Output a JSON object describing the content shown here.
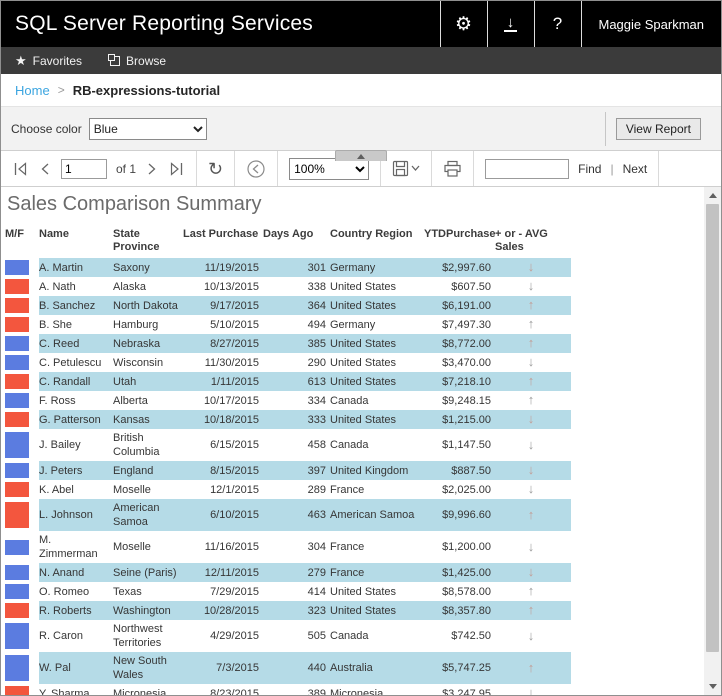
{
  "header": {
    "title": "SQL Server Reporting Services",
    "user": "Maggie Sparkman",
    "help_glyph": "?",
    "gear_glyph": "⚙",
    "download_glyph": "↓"
  },
  "tabs": {
    "favorites": "Favorites",
    "browse": "Browse",
    "star_glyph": "★"
  },
  "breadcrumb": {
    "home": "Home",
    "separator": ">",
    "current": "RB-expressions-tutorial"
  },
  "parameters": {
    "label": "Choose color",
    "selected_value": "Blue",
    "view_report": "View Report"
  },
  "toolbar": {
    "page_value": "1",
    "of_label": "of 1",
    "zoom_value": "100%",
    "refresh_glyph": "↻",
    "find_label": "Find",
    "pipe": "|",
    "next_label": "Next",
    "find_value": ""
  },
  "report": {
    "title": "Sales Comparison Summary",
    "columns": [
      "M/F",
      "Name",
      "State Province",
      "Last Purchase",
      "Days Ago",
      "Country Region",
      "YTDPurchase",
      "+ or - AVG Sales"
    ],
    "colors": {
      "male_blue": "#5b7ce0",
      "female_red": "#f3563e",
      "alt_row": "#b5dbe7"
    },
    "icons": {
      "up_arrow": "↑",
      "down_arrow": "↓"
    },
    "rows": [
      {
        "mf": "blue",
        "name": "A. Martin",
        "state": "Saxony",
        "last_purchase": "11/19/2015",
        "days_ago": "301",
        "country": "Germany",
        "ytd": "$2,997.60",
        "trend": "down"
      },
      {
        "mf": "red",
        "name": "A. Nath",
        "state": "Alaska",
        "last_purchase": "10/13/2015",
        "days_ago": "338",
        "country": "United States",
        "ytd": "$607.50",
        "trend": "down"
      },
      {
        "mf": "red",
        "name": "B. Sanchez",
        "state": "North Dakota",
        "last_purchase": "9/17/2015",
        "days_ago": "364",
        "country": "United States",
        "ytd": "$6,191.00",
        "trend": "up"
      },
      {
        "mf": "red",
        "name": "B. She",
        "state": "Hamburg",
        "last_purchase": "5/10/2015",
        "days_ago": "494",
        "country": "Germany",
        "ytd": "$7,497.30",
        "trend": "up"
      },
      {
        "mf": "blue",
        "name": "C. Reed",
        "state": "Nebraska",
        "last_purchase": "8/27/2015",
        "days_ago": "385",
        "country": "United States",
        "ytd": "$8,772.00",
        "trend": "up"
      },
      {
        "mf": "blue",
        "name": "C. Petulescu",
        "state": "Wisconsin",
        "last_purchase": "11/30/2015",
        "days_ago": "290",
        "country": "United States",
        "ytd": "$3,470.00",
        "trend": "down"
      },
      {
        "mf": "red",
        "name": "C. Randall",
        "state": "Utah",
        "last_purchase": "1/11/2015",
        "days_ago": "613",
        "country": "United States",
        "ytd": "$7,218.10",
        "trend": "up"
      },
      {
        "mf": "blue",
        "name": "F. Ross",
        "state": "Alberta",
        "last_purchase": "10/17/2015",
        "days_ago": "334",
        "country": "Canada",
        "ytd": "$9,248.15",
        "trend": "up"
      },
      {
        "mf": "red",
        "name": "G. Patterson",
        "state": "Kansas",
        "last_purchase": "10/18/2015",
        "days_ago": "333",
        "country": "United States",
        "ytd": "$1,215.00",
        "trend": "down"
      },
      {
        "mf": "blue",
        "name": "J. Bailey",
        "state": "British Columbia",
        "last_purchase": "6/15/2015",
        "days_ago": "458",
        "country": "Canada",
        "ytd": "$1,147.50",
        "trend": "down",
        "tall": true
      },
      {
        "mf": "blue",
        "name": "J. Peters",
        "state": "England",
        "last_purchase": "8/15/2015",
        "days_ago": "397",
        "country": "United Kingdom",
        "ytd": "$887.50",
        "trend": "down"
      },
      {
        "mf": "red",
        "name": "K. Abel",
        "state": "Moselle",
        "last_purchase": "12/1/2015",
        "days_ago": "289",
        "country": "France",
        "ytd": "$2,025.00",
        "trend": "down"
      },
      {
        "mf": "red",
        "name": "L. Johnson",
        "state": "American Samoa",
        "last_purchase": "6/10/2015",
        "days_ago": "463",
        "country": "American Samoa",
        "ytd": "$9,996.60",
        "trend": "up",
        "tall": true
      },
      {
        "mf": "blue",
        "name": "M. Zimmerman",
        "state": "Moselle",
        "last_purchase": "11/16/2015",
        "days_ago": "304",
        "country": "France",
        "ytd": "$1,200.00",
        "trend": "down"
      },
      {
        "mf": "blue",
        "name": "N. Anand",
        "state": "Seine (Paris)",
        "last_purchase": "12/11/2015",
        "days_ago": "279",
        "country": "France",
        "ytd": "$1,425.00",
        "trend": "down"
      },
      {
        "mf": "blue",
        "name": "O. Romeo",
        "state": "Texas",
        "last_purchase": "7/29/2015",
        "days_ago": "414",
        "country": "United States",
        "ytd": "$8,578.00",
        "trend": "up"
      },
      {
        "mf": "red",
        "name": "R. Roberts",
        "state": "Washington",
        "last_purchase": "10/28/2015",
        "days_ago": "323",
        "country": "United States",
        "ytd": "$8,357.80",
        "trend": "up"
      },
      {
        "mf": "blue",
        "name": "R. Caron",
        "state": "Northwest Territories",
        "last_purchase": "4/29/2015",
        "days_ago": "505",
        "country": "Canada",
        "ytd": "$742.50",
        "trend": "down",
        "tall": true
      },
      {
        "mf": "blue",
        "name": "W. Pal",
        "state": "New South Wales",
        "last_purchase": "7/3/2015",
        "days_ago": "440",
        "country": "Australia",
        "ytd": "$5,747.25",
        "trend": "up",
        "tall": true
      },
      {
        "mf": "red",
        "name": "Y. Sharma",
        "state": "Micronesia",
        "last_purchase": "8/23/2015",
        "days_ago": "389",
        "country": "Micronesia",
        "ytd": "$3,247.95",
        "trend": "down"
      }
    ]
  }
}
